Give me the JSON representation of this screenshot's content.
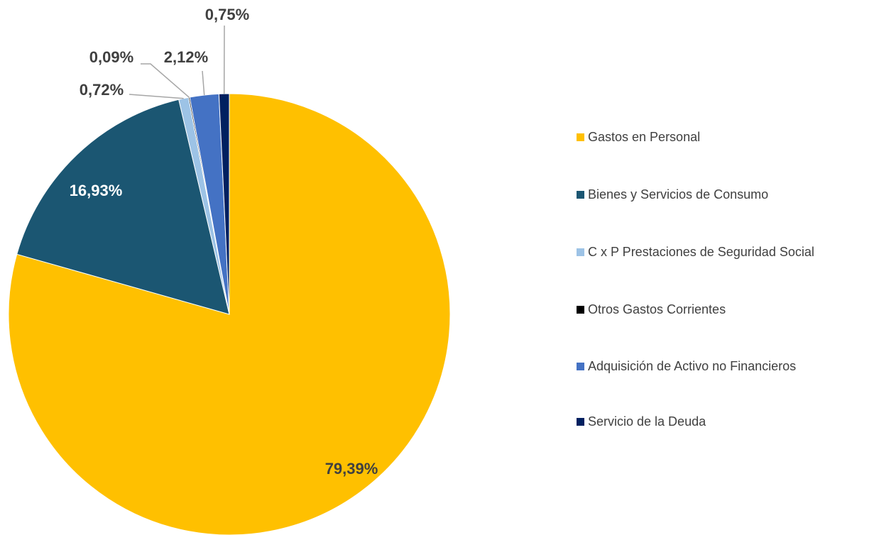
{
  "chart_data": {
    "type": "pie",
    "categories": [
      "Gastos en Personal",
      "Bienes y Servicios de Consumo",
      "C x P Prestaciones de Seguridad Social",
      "Otros Gastos Corrientes",
      "Adquisición de Activo no Financieros",
      "Servicio de la Deuda"
    ],
    "values": [
      79.39,
      16.93,
      0.72,
      0.09,
      2.12,
      0.75
    ],
    "value_labels": [
      "79,39%",
      "16,93%",
      "0,72%",
      "0,09%",
      "2,12%",
      "0,75%"
    ],
    "colors": [
      "#FFC000",
      "#1B5672",
      "#9DC3E6",
      "#000000",
      "#4472C4",
      "#002060"
    ],
    "legend": "right"
  }
}
